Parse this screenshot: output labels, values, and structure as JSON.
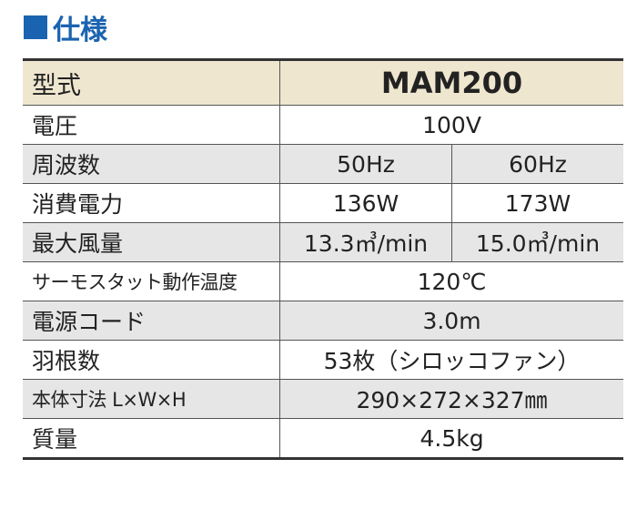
{
  "title": "仕様",
  "table": {
    "header": [
      "型式",
      "MAM200"
    ],
    "rows": [
      [
        "電圧",
        "100V"
      ],
      [
        "周波数",
        "50Hz",
        "60Hz"
      ],
      [
        "消費電力",
        "136W",
        "173W"
      ],
      [
        "最大風量",
        "13.3㎥/min",
        "15.0㎥/min"
      ],
      [
        "サーモスタット動作温度",
        "120℃"
      ],
      [
        "電源コード",
        "3.0m"
      ],
      [
        "羽根数",
        "53枚（シロッコファン）"
      ],
      [
        "本体寸法 L×W×H",
        "290×272×327㎜"
      ],
      [
        "質量",
        "4.5kg"
      ]
    ]
  }
}
